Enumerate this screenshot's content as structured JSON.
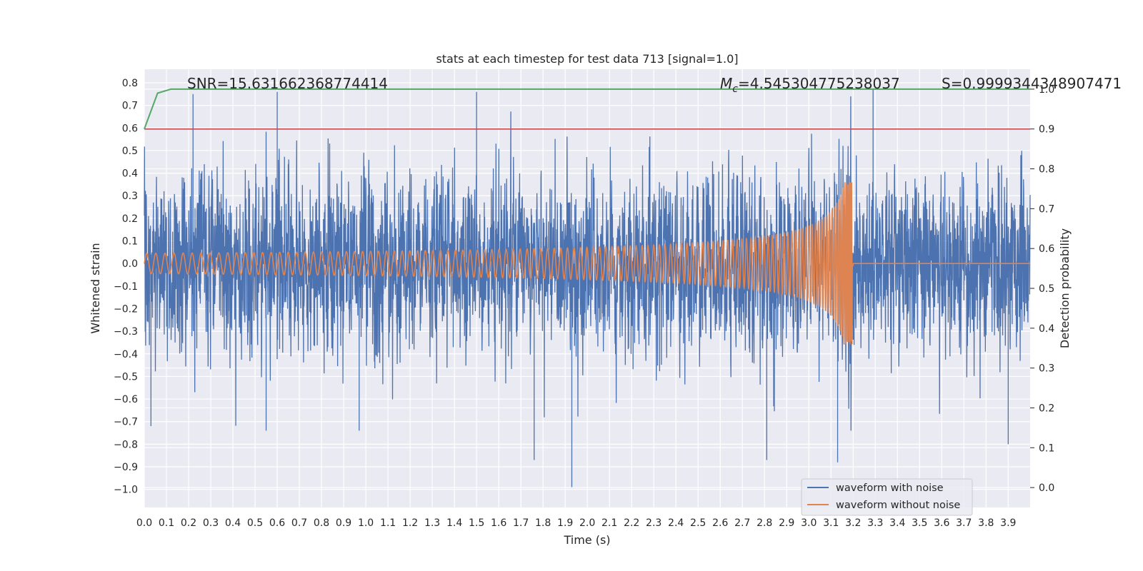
{
  "chart_data": {
    "type": "line",
    "title": "stats at each timestep for test data 713 [signal=1.0]",
    "xlabel": "Time (s)",
    "ylabel": "Whitened strain",
    "ylabel_right": "Detection probability",
    "xlim": [
      0.0,
      3.999
    ],
    "ylim": [
      -1.08,
      0.86
    ],
    "ylim_right": [
      -0.05,
      1.05
    ],
    "x_ticks": [
      0.0,
      0.1,
      0.2,
      0.3,
      0.4,
      0.5,
      0.6,
      0.7,
      0.8,
      0.9,
      1.0,
      1.1,
      1.2,
      1.3,
      1.4,
      1.5,
      1.6,
      1.7,
      1.8,
      1.9,
      2.0,
      2.1,
      2.2,
      2.3,
      2.4,
      2.5,
      2.6,
      2.7,
      2.8,
      2.9,
      3.0,
      3.1,
      3.2,
      3.3,
      3.4,
      3.5,
      3.6,
      3.7,
      3.8,
      3.9
    ],
    "x_tick_labels": [
      "0.0",
      "0.1",
      "0.2",
      "0.3",
      "0.4",
      "0.5",
      "0.6",
      "0.7",
      "0.8",
      "0.9",
      "1.0",
      "1.1",
      "1.2",
      "1.3",
      "1.4",
      "1.5",
      "1.6",
      "1.7",
      "1.8",
      "1.9",
      "2.0",
      "2.1",
      "2.2",
      "2.3",
      "2.4",
      "2.5",
      "2.6",
      "2.7",
      "2.8",
      "2.9",
      "3.0",
      "3.1",
      "3.2",
      "3.3",
      "3.4",
      "3.5",
      "3.6",
      "3.7",
      "3.8",
      "3.9"
    ],
    "y_ticks": [
      0.8,
      0.7,
      0.6,
      0.5,
      0.4,
      0.3,
      0.2,
      0.1,
      0.0,
      -0.1,
      -0.2,
      -0.3,
      -0.4,
      -0.5,
      -0.6,
      -0.7,
      -0.8,
      -0.9,
      -1.0
    ],
    "y_tick_labels": [
      "0.8",
      "0.7",
      "0.6",
      "0.5",
      "0.4",
      "0.3",
      "0.2",
      "0.1",
      "0.0",
      "−0.1",
      "−0.2",
      "−0.3",
      "−0.4",
      "−0.5",
      "−0.6",
      "−0.7",
      "−0.8",
      "−0.9",
      "−1.0"
    ],
    "y_right_ticks": [
      1.0,
      0.9,
      0.8,
      0.7,
      0.6,
      0.5,
      0.4,
      0.3,
      0.2,
      0.1,
      0.0
    ],
    "y_right_tick_labels": [
      "1.0",
      "0.9",
      "0.8",
      "0.7",
      "0.6",
      "0.5",
      "0.4",
      "0.3",
      "0.2",
      "0.1",
      "0.0"
    ],
    "annotations": {
      "snr": "SNR=15.631662368774414",
      "mc_symbol": "M",
      "mc_sub": "c",
      "mc_value": "=4.545304775238037",
      "s": "S=0.9999344348907471"
    },
    "series": [
      {
        "name": "waveform with noise",
        "color": "#4c72b0",
        "axis": "left",
        "kind": "noise",
        "t_range": [
          0.0,
          3.999
        ],
        "typical_amplitude": 0.35,
        "extremes": [
          {
            "t": 0.22,
            "v": 0.75
          },
          {
            "t": 0.6,
            "v": 0.76
          },
          {
            "t": 1.5,
            "v": 0.76
          },
          {
            "t": 1.93,
            "v": -0.99
          },
          {
            "t": 1.76,
            "v": -0.87
          },
          {
            "t": 2.81,
            "v": -0.87
          },
          {
            "t": 3.13,
            "v": -0.88
          },
          {
            "t": 3.29,
            "v": 0.77
          },
          {
            "t": 3.9,
            "v": -0.8
          },
          {
            "t": 0.03,
            "v": -0.72
          },
          {
            "t": 0.55,
            "v": -0.74
          },
          {
            "t": 0.97,
            "v": -0.74
          }
        ]
      },
      {
        "name": "waveform without noise",
        "color": "#dd8452",
        "axis": "left",
        "kind": "chirp",
        "t_start": 0.0,
        "t_merger": 3.2,
        "t_end": 3.999,
        "amp_start": 0.045,
        "amp_peak": 0.36,
        "amp_trough": -0.3,
        "freq_start": 24
      },
      {
        "name": "detection probability",
        "color": "#55a868",
        "axis": "right",
        "kind": "line",
        "x": [
          0.0,
          0.06,
          0.12,
          3.999
        ],
        "y": [
          0.9,
          0.99,
          1.0,
          1.0
        ]
      },
      {
        "name": "threshold",
        "color": "#c44e52",
        "axis": "right",
        "kind": "hline",
        "y": 0.9
      }
    ],
    "legend": {
      "position": "lower-right",
      "entries": [
        {
          "label": "waveform with noise",
          "color": "#4c72b0"
        },
        {
          "label": "waveform without noise",
          "color": "#dd8452"
        }
      ]
    },
    "grid": true,
    "background": "#eaeaf2",
    "grid_color": "#ffffff"
  }
}
